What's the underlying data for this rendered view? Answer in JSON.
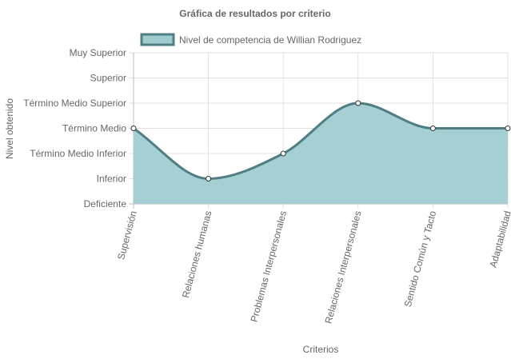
{
  "chart_data": {
    "type": "area",
    "title": "Gráfica de resultados por criterio",
    "xlabel": "Criterios",
    "ylabel": "Nivel obtenido",
    "categories": [
      "Supervisión",
      "Relaciones humanas",
      "Problemas Interpersonales",
      "Relaciones Interpersonales",
      "Sentido Común y Tacto",
      "Adaptabilidad"
    ],
    "y_levels": [
      "Deficiente",
      "Inferior",
      "Término Medio Inferior",
      "Término Medio",
      "Término Medio Superior",
      "Superior",
      "Muy Superior"
    ],
    "ylim": [
      0,
      6
    ],
    "series": [
      {
        "name": "Nivel de competencia de Willian Rodriguez",
        "values": [
          3,
          1,
          2,
          4,
          3,
          3
        ]
      }
    ],
    "legend_position": "top",
    "grid": true,
    "colors": {
      "fill": "#a0ccd0",
      "line": "#4e7e84",
      "grid": "#e0e0e0",
      "axis": "#bdbdbd"
    }
  }
}
